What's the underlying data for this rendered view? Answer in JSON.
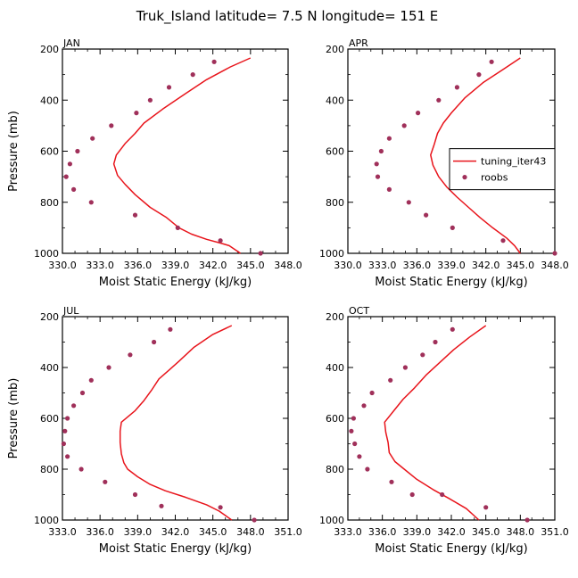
{
  "figure": {
    "title": "Truk_Island   latitude= 7.5 N longitude= 151 E",
    "model_color": "#e8141b",
    "obs_color": "#a0305a"
  },
  "chart_data": [
    {
      "type": "line",
      "panel": "JAN",
      "xlabel": "Moist Static Energy (kJ/kg)",
      "ylabel": "Pressure (mb)",
      "xlim": [
        330.0,
        348.0
      ],
      "xticks": [
        "330.0",
        "333.0",
        "336.0",
        "339.0",
        "342.0",
        "345.0",
        "348.0"
      ],
      "ylim": [
        1000,
        200
      ],
      "yticks": [
        "200",
        "400",
        "600",
        "800",
        "1000"
      ],
      "legend": null,
      "series": [
        {
          "name": "tuning_iter43",
          "kind": "line",
          "x": [
            345.0,
            343.4,
            341.5,
            339.8,
            338.0,
            336.5,
            335.8,
            335.0,
            334.3,
            334.1,
            334.4,
            335.0,
            335.8,
            337.0,
            338.3,
            339.3,
            340.3,
            341.5,
            342.6,
            343.3,
            344.2
          ],
          "y": [
            235,
            270,
            320,
            375,
            435,
            490,
            530,
            570,
            615,
            650,
            695,
            730,
            770,
            820,
            860,
            900,
            925,
            945,
            960,
            970,
            1000
          ]
        },
        {
          "name": "roobs",
          "kind": "scatter",
          "x": [
            342.1,
            340.4,
            338.5,
            337.0,
            335.9,
            333.9,
            332.4,
            331.2,
            330.6,
            330.3,
            330.9,
            332.3,
            335.8,
            339.2,
            342.6,
            345.8
          ],
          "y": [
            250,
            300,
            350,
            400,
            450,
            500,
            550,
            600,
            650,
            700,
            750,
            800,
            850,
            900,
            950,
            1000
          ]
        }
      ]
    },
    {
      "type": "line",
      "panel": "APR",
      "xlabel": "Moist Static Energy (kJ/kg)",
      "ylabel": "",
      "xlim": [
        330.0,
        348.0
      ],
      "xticks": [
        "330.0",
        "333.0",
        "336.0",
        "339.0",
        "342.0",
        "345.0",
        "348.0"
      ],
      "ylim": [
        1000,
        200
      ],
      "yticks": [
        "200",
        "400",
        "600",
        "800",
        "1000"
      ],
      "legend": {
        "position": "middle-right",
        "entries": [
          "tuning_iter43",
          "roobs"
        ]
      },
      "series": [
        {
          "name": "tuning_iter43",
          "kind": "line",
          "x": [
            345.0,
            343.5,
            341.8,
            340.2,
            339.0,
            338.3,
            337.8,
            337.5,
            337.2,
            337.4,
            337.9,
            338.6,
            339.5,
            340.5,
            341.5,
            342.6,
            343.8,
            344.5,
            345.0
          ],
          "y": [
            235,
            280,
            330,
            390,
            450,
            490,
            530,
            575,
            615,
            655,
            700,
            740,
            780,
            820,
            860,
            900,
            940,
            970,
            1000
          ]
        },
        {
          "name": "roobs",
          "kind": "scatter",
          "x": [
            342.5,
            341.4,
            339.5,
            337.9,
            336.1,
            334.9,
            333.6,
            332.9,
            332.5,
            332.6,
            333.6,
            335.3,
            336.8,
            339.1,
            343.5,
            348.0
          ],
          "y": [
            250,
            300,
            350,
            400,
            450,
            500,
            550,
            600,
            650,
            700,
            750,
            800,
            850,
            900,
            950,
            1000
          ]
        }
      ]
    },
    {
      "type": "line",
      "panel": "JUL",
      "xlabel": "Moist Static Energy (kJ/kg)",
      "ylabel": "Pressure (mb)",
      "xlim": [
        333.0,
        351.0
      ],
      "xticks": [
        "333.0",
        "336.0",
        "339.0",
        "342.0",
        "345.0",
        "348.0",
        "351.0"
      ],
      "ylim": [
        1000,
        200
      ],
      "yticks": [
        "200",
        "400",
        "600",
        "800",
        "1000"
      ],
      "legend": null,
      "series": [
        {
          "name": "tuning_iter43",
          "kind": "line",
          "x": [
            346.5,
            345.0,
            343.5,
            342.3,
            341.5,
            340.7,
            340.1,
            339.5,
            338.8,
            337.7,
            337.6,
            337.6,
            337.7,
            337.9,
            338.2,
            339.0,
            340.0,
            341.2,
            342.8,
            344.5,
            345.5,
            346.5
          ],
          "y": [
            235,
            270,
            320,
            375,
            410,
            445,
            490,
            530,
            570,
            615,
            650,
            695,
            740,
            775,
            800,
            830,
            860,
            885,
            910,
            940,
            965,
            1000
          ]
        },
        {
          "name": "roobs",
          "kind": "scatter",
          "x": [
            341.6,
            340.3,
            338.4,
            336.7,
            335.3,
            334.6,
            333.9,
            333.4,
            333.2,
            333.1,
            333.4,
            334.5,
            336.4,
            338.8,
            340.9,
            345.6,
            348.3
          ],
          "y": [
            250,
            300,
            350,
            400,
            450,
            500,
            550,
            600,
            650,
            700,
            750,
            800,
            850,
            900,
            945,
            950,
            1000
          ]
        }
      ]
    },
    {
      "type": "line",
      "panel": "OCT",
      "xlabel": "Moist Static Energy (kJ/kg)",
      "ylabel": "",
      "xlim": [
        333.0,
        351.0
      ],
      "xticks": [
        "333.0",
        "336.0",
        "339.0",
        "342.0",
        "345.0",
        "348.0",
        "351.0"
      ],
      "ylim": [
        1000,
        200
      ],
      "yticks": [
        "200",
        "400",
        "600",
        "800",
        "1000"
      ],
      "legend": null,
      "series": [
        {
          "name": "tuning_iter43",
          "kind": "line",
          "x": [
            345.0,
            343.6,
            342.2,
            341.0,
            339.8,
            338.8,
            337.8,
            337.0,
            336.2,
            336.3,
            336.5,
            336.6,
            337.1,
            337.9,
            339.0,
            340.4,
            341.8,
            343.3,
            344.4
          ],
          "y": [
            235,
            280,
            330,
            380,
            430,
            480,
            525,
            570,
            615,
            655,
            695,
            735,
            770,
            800,
            840,
            880,
            915,
            955,
            1000
          ]
        },
        {
          "name": "roobs",
          "kind": "scatter",
          "x": [
            342.1,
            340.6,
            339.5,
            338.0,
            336.7,
            335.1,
            334.4,
            333.5,
            333.3,
            333.6,
            334.0,
            334.7,
            336.8,
            338.6,
            341.2,
            345.0,
            348.6
          ],
          "y": [
            250,
            300,
            350,
            400,
            450,
            500,
            550,
            600,
            650,
            700,
            750,
            800,
            850,
            900,
            900,
            950,
            1000
          ]
        }
      ]
    }
  ]
}
